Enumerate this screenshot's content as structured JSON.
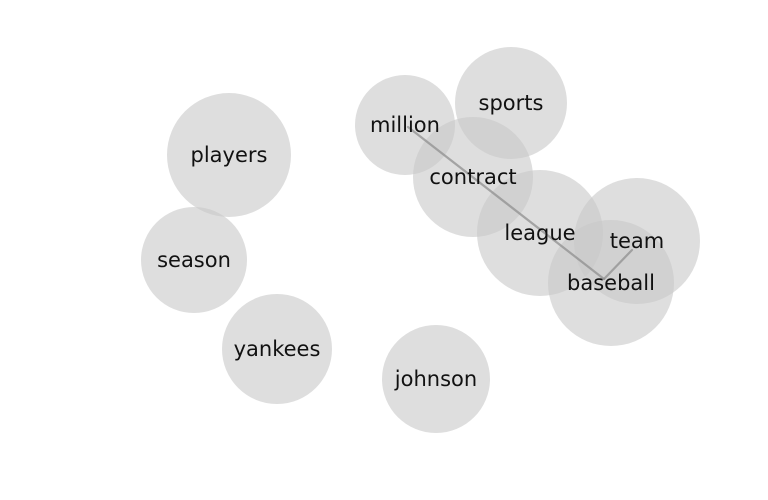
{
  "diagram": {
    "type": "word-bubble-network",
    "nodes": [
      {
        "id": "n1",
        "label": "players"
      },
      {
        "id": "n2",
        "label": "season"
      },
      {
        "id": "n3",
        "label": "yankees"
      },
      {
        "id": "n4",
        "label": "million"
      },
      {
        "id": "n5",
        "label": "sports"
      },
      {
        "id": "n6",
        "label": "contract"
      },
      {
        "id": "n7",
        "label": "league"
      },
      {
        "id": "n8",
        "label": "team"
      },
      {
        "id": "n9",
        "label": "baseball"
      },
      {
        "id": "n10",
        "label": "johnson"
      }
    ],
    "edges": [
      {
        "from": "n4",
        "to": "n9"
      },
      {
        "from": "n8",
        "to": "n9"
      }
    ]
  }
}
